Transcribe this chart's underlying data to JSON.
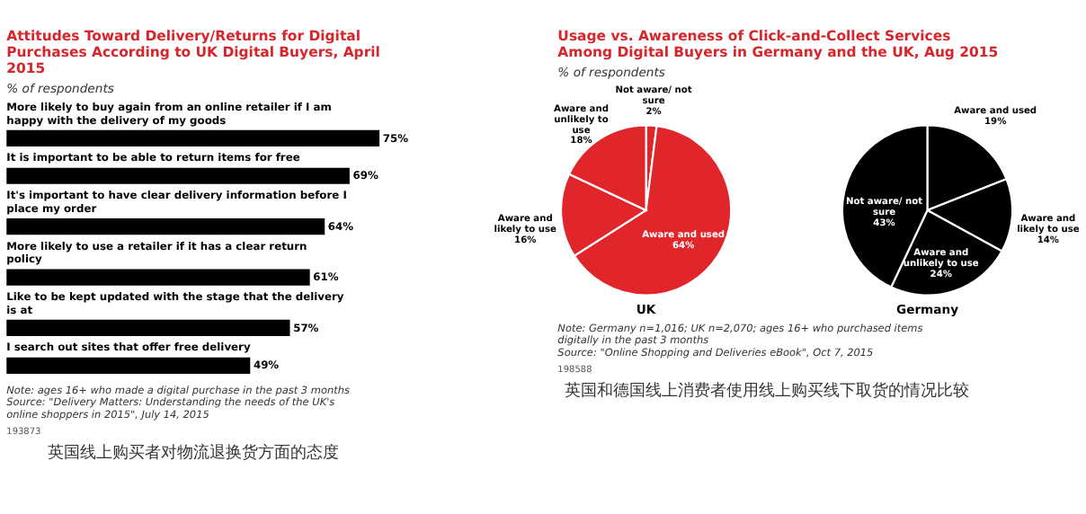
{
  "chart_data": [
    {
      "type": "bar",
      "orientation": "horizontal",
      "title": "Attitudes Toward Delivery/Returns for Digital Purchases According to UK Digital Buyers, April 2015",
      "subtitle": "% of respondents",
      "color": "#000000",
      "categories": [
        "More likely to buy again from an online retailer if I am happy with the delivery of my goods",
        "It is important to be able to return items for free",
        "It's important to have clear delivery information before I place my order",
        "More likely to use a retailer if it has a clear return policy",
        "Like to be kept updated with the stage that the delivery is at",
        "I search out sites that offer free delivery"
      ],
      "values": [
        75,
        69,
        64,
        61,
        57,
        49
      ],
      "value_labels": [
        "75%",
        "69%",
        "64%",
        "61%",
        "57%",
        "49%"
      ],
      "annotations": [
        "Note: ages 16+ who made a digital purchase in the past 3 months",
        "Source: \"Delivery Matters: Understanding the needs of the UK's online shoppers in 2015\", July 14, 2015",
        "193873",
        "英国线上购买者对物流退换货方面的态度"
      ]
    },
    {
      "type": "pie",
      "title": "Usage vs. Awareness of Click-and-Collect Services Among Digital Buyers in Germany and the UK, Aug 2015",
      "subtitle": "% of respondents",
      "xlabel": "UK",
      "categories": [
        "Not aware/ not sure",
        "Aware and used",
        "Aware and likely to use",
        "Aware and unlikely to use"
      ],
      "values": [
        2,
        64,
        16,
        18
      ],
      "value_labels": [
        "2%",
        "64%",
        "16%",
        "18%"
      ],
      "colors": [
        "#e0262b",
        "#e0262b",
        "#e0262b",
        "#e0262b"
      ],
      "annotations": [
        "Note: Germany n=1,016; UK n=2,070; ages 16+ who purchased items digitally in the past 3 months",
        "Source: \"Online Shopping and Deliveries eBook\", Oct 7, 2015",
        "198588",
        "英国和德国线上消费者使用线上购买线下取货的情况比较"
      ]
    },
    {
      "type": "pie",
      "xlabel": "Germany",
      "categories": [
        "Aware and used",
        "Aware and likely to use",
        "Aware and unlikely to use",
        "Not aware/ not sure"
      ],
      "values": [
        19,
        14,
        24,
        43
      ],
      "value_labels": [
        "19%",
        "14%",
        "24%",
        "43%"
      ],
      "colors": [
        "#000000",
        "#000000",
        "#000000",
        "#000000"
      ]
    }
  ]
}
